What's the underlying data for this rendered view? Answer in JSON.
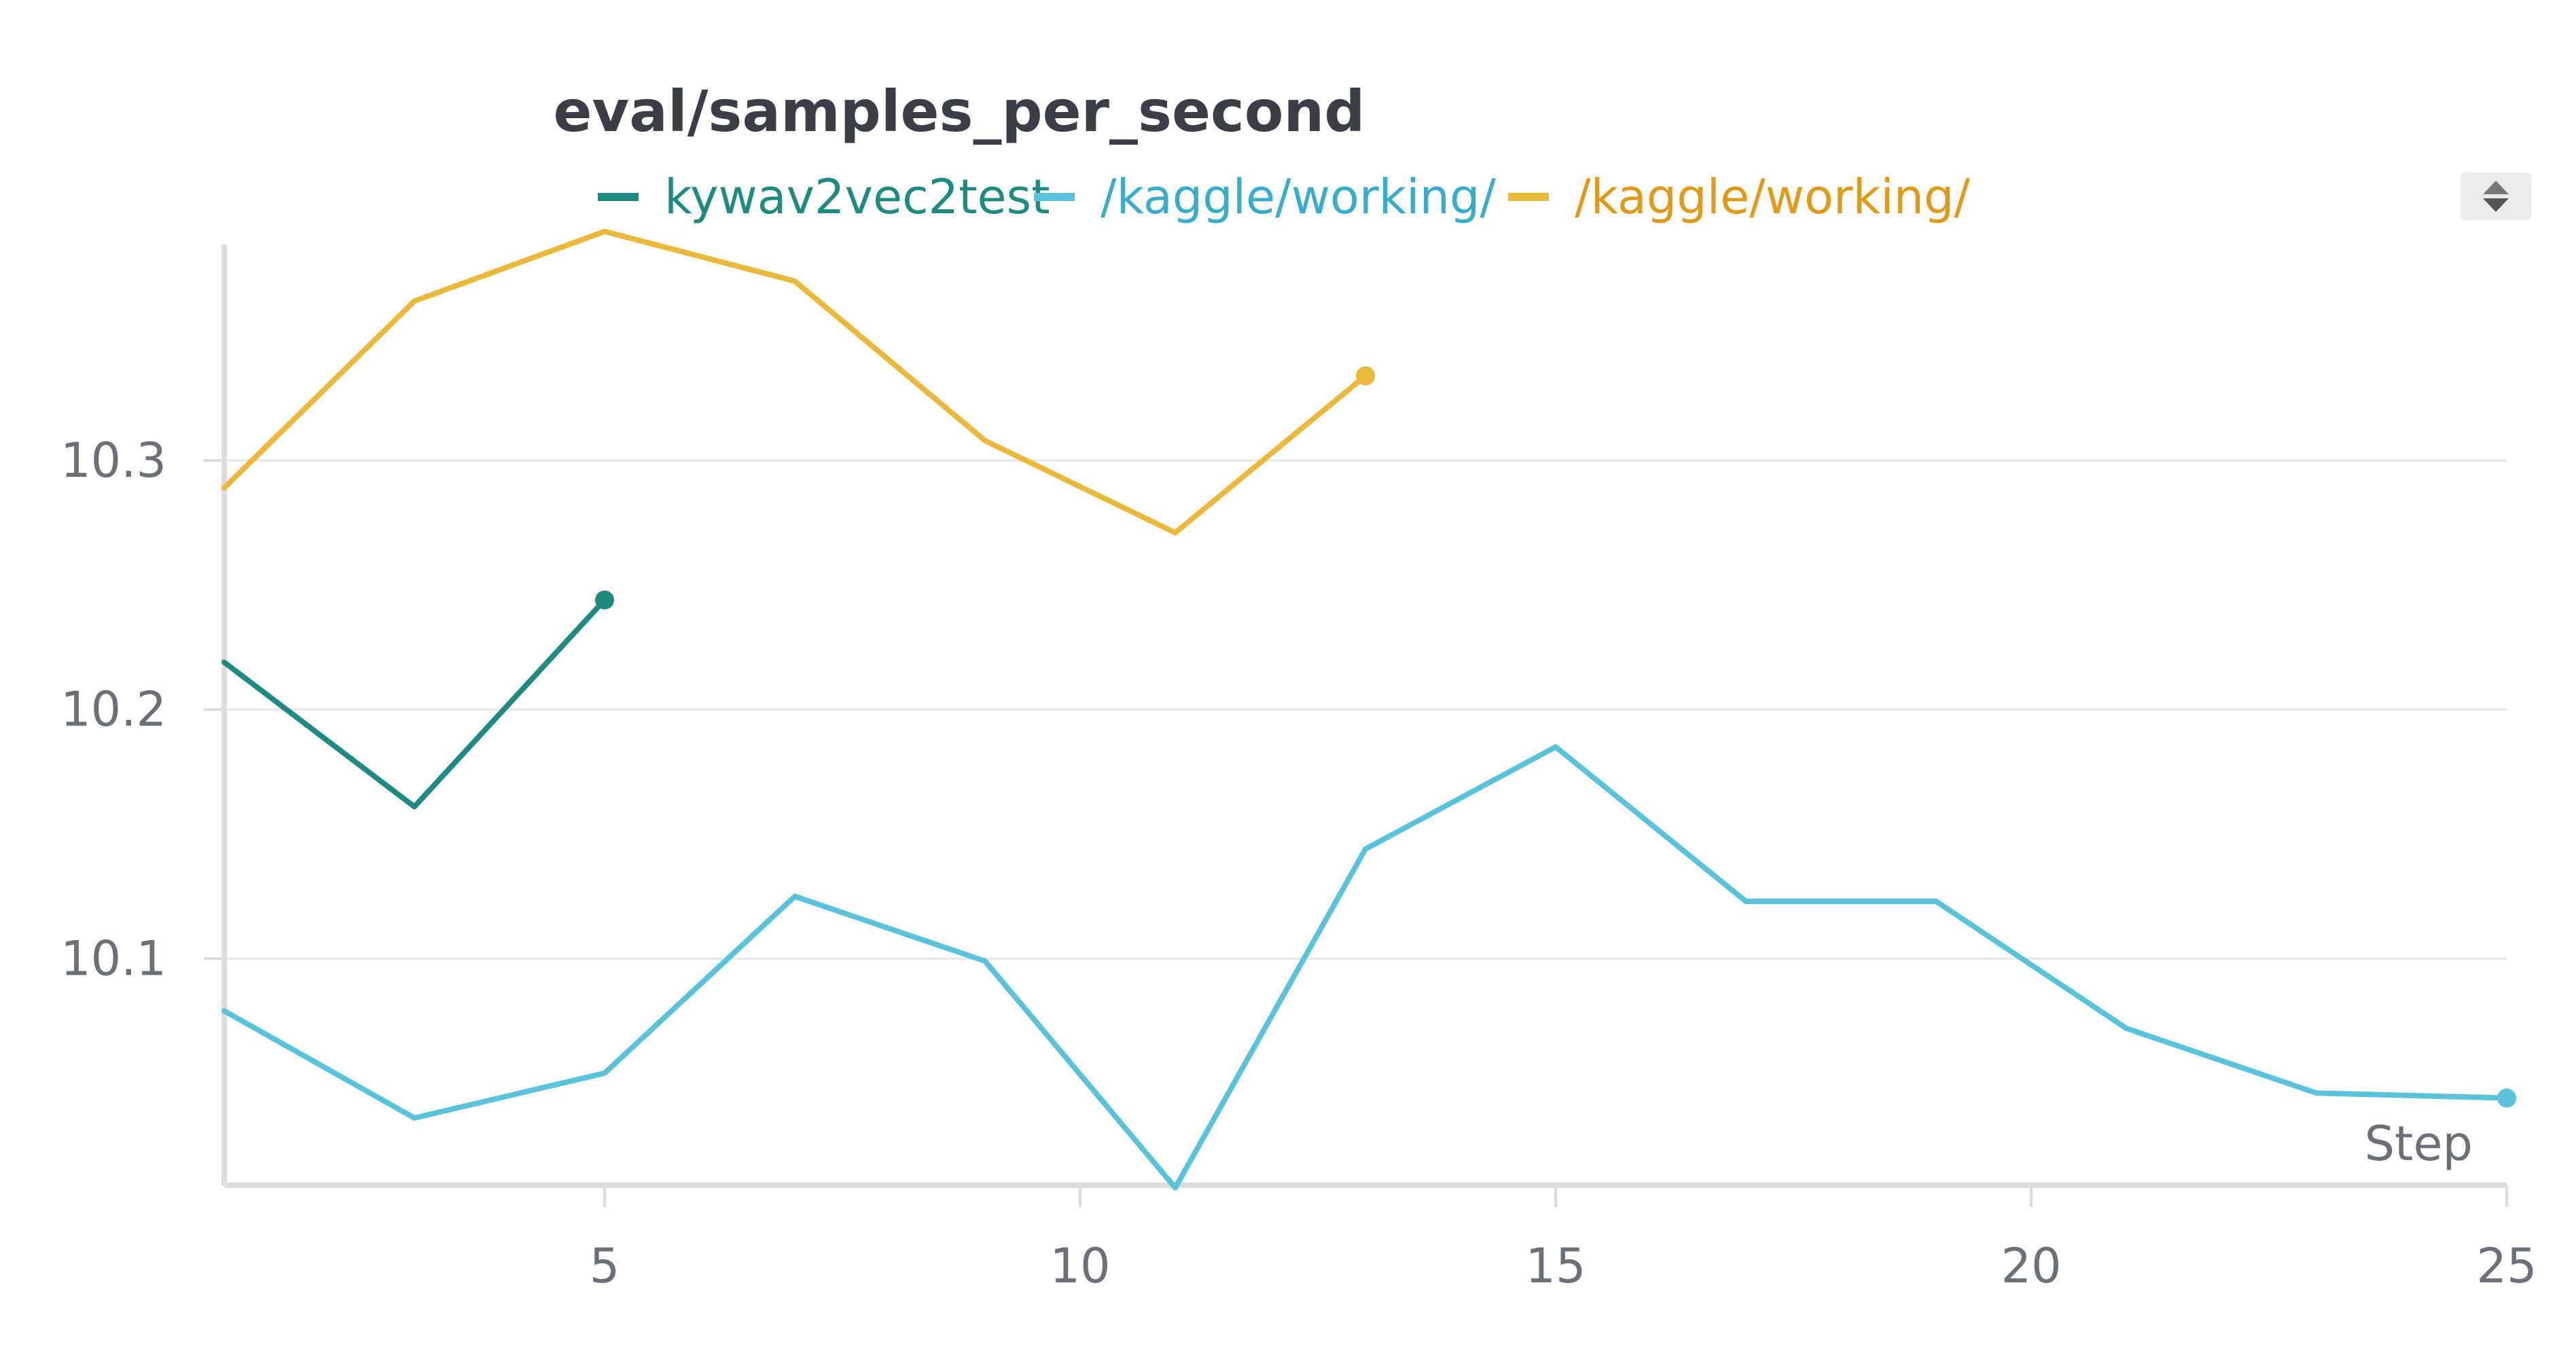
{
  "chart_data": {
    "type": "line",
    "title": "eval/samples_per_second",
    "xlabel": "Step",
    "ylabel": "",
    "xlim": [
      1,
      25
    ],
    "ylim": [
      10.009,
      10.384
    ],
    "x_ticks": [
      "5",
      "10",
      "15",
      "20",
      "25"
    ],
    "y_ticks": [
      "10.1",
      "10.2",
      "10.3"
    ],
    "grid": true,
    "legend_position": "top-center",
    "series": [
      {
        "name": "kywav2vec2test",
        "color": "#1f8a7e",
        "x": [
          1,
          3,
          5
        ],
        "y": [
          10.219,
          10.161,
          10.244
        ]
      },
      {
        "name": "/kaggle/working/",
        "color": "#5bc3d9",
        "x": [
          1,
          3,
          5,
          7,
          9,
          11,
          13,
          15,
          17,
          19,
          21,
          23,
          25
        ],
        "y": [
          10.079,
          10.036,
          10.054,
          10.125,
          10.099,
          10.008,
          10.144,
          10.185,
          10.123,
          10.123,
          10.072,
          10.046,
          10.044
        ]
      },
      {
        "name": "/kaggle/working/",
        "color": "#eab83a",
        "x": [
          1,
          3,
          5,
          7,
          9,
          11,
          13
        ],
        "y": [
          10.289,
          10.364,
          10.392,
          10.372,
          10.308,
          10.271,
          10.334
        ]
      }
    ]
  },
  "legend_colors": [
    "#1f8a7e",
    "#3aaccb",
    "#e09a1a"
  ]
}
